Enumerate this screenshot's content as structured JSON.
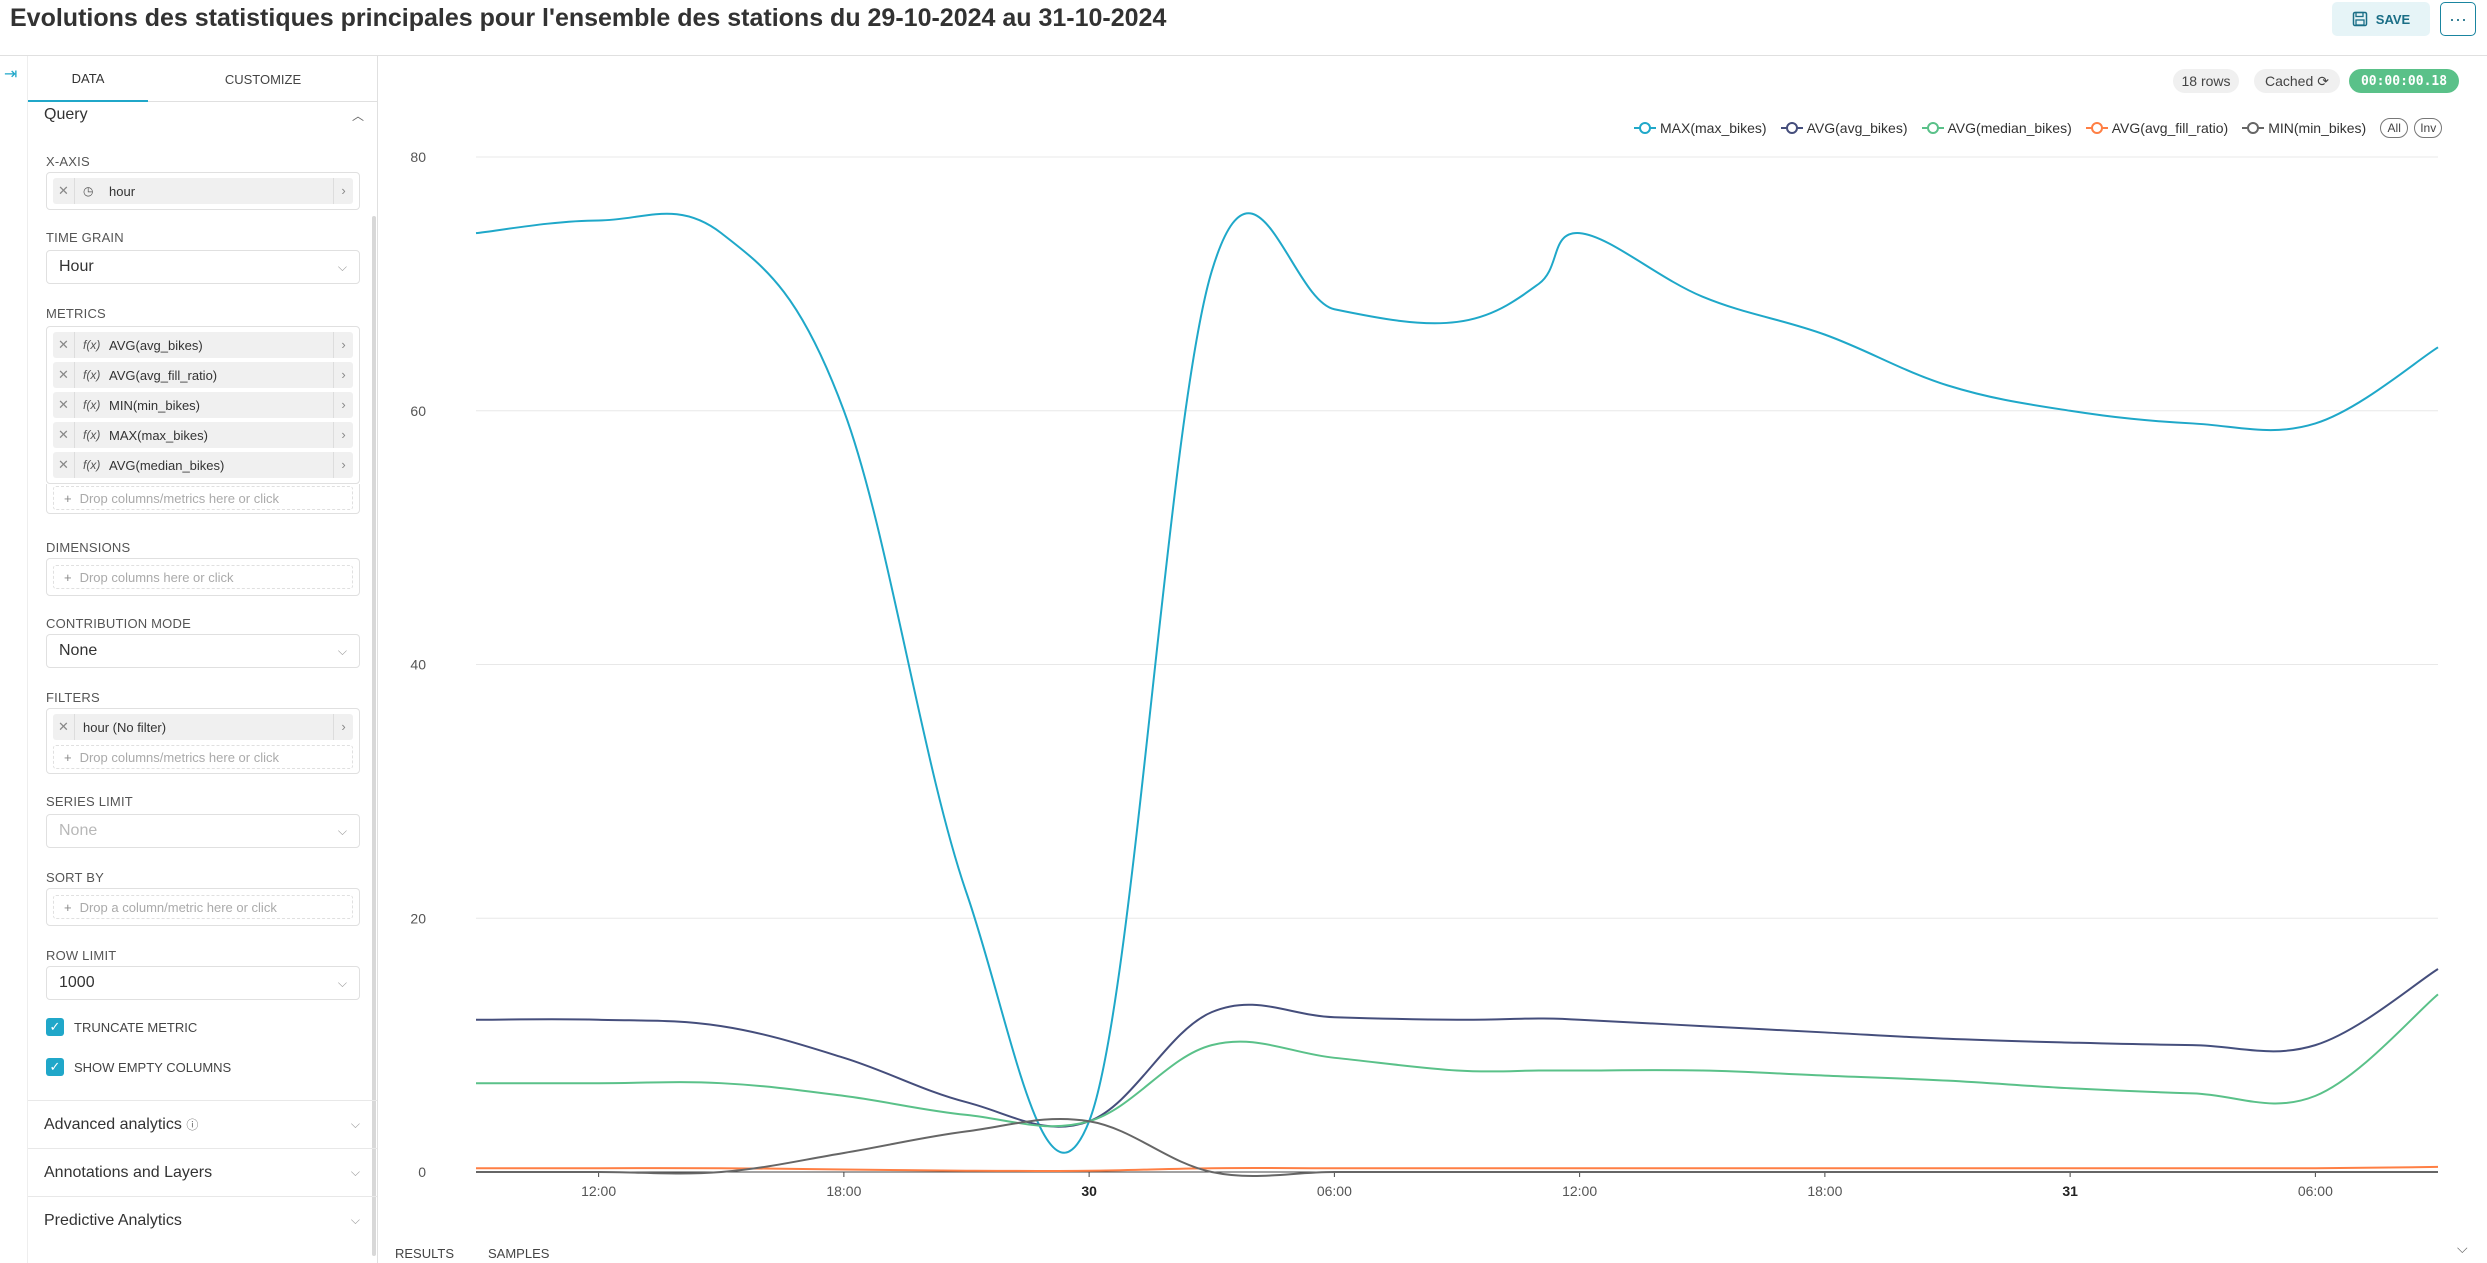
{
  "header": {
    "title": "Evolutions des statistiques principales pour l'ensemble des stations du 29-10-2024 au 31-10-2024",
    "save_label": "SAVE",
    "more_label": "···"
  },
  "sidebar": {
    "tabs": [
      "DATA",
      "CUSTOMIZE"
    ],
    "query_label": "Query",
    "x_axis": {
      "label": "X-AXIS",
      "value": "hour"
    },
    "time_grain": {
      "label": "TIME GRAIN",
      "value": "Hour"
    },
    "metrics": {
      "label": "METRICS",
      "items": [
        "AVG(avg_bikes)",
        "AVG(avg_fill_ratio)",
        "MIN(min_bikes)",
        "MAX(max_bikes)",
        "AVG(median_bikes)"
      ],
      "fx": "f(x)",
      "drop_placeholder": "Drop columns/metrics here or click"
    },
    "dimensions": {
      "label": "DIMENSIONS",
      "drop_placeholder": "Drop columns here or click"
    },
    "contribution_mode": {
      "label": "CONTRIBUTION MODE",
      "value": "None"
    },
    "filters": {
      "label": "FILTERS",
      "value": "hour (No filter)",
      "drop_placeholder": "Drop columns/metrics here or click"
    },
    "series_limit": {
      "label": "SERIES LIMIT",
      "value": "None"
    },
    "sort_by": {
      "label": "SORT BY",
      "drop_placeholder": "Drop a column/metric here or click"
    },
    "row_limit": {
      "label": "ROW LIMIT",
      "value": "1000"
    },
    "truncate_metric": "TRUNCATE METRIC",
    "show_empty_columns": "SHOW EMPTY COLUMNS",
    "advanced_analytics": "Advanced analytics",
    "annotations_layers": "Annotations and Layers",
    "predictive_analytics": "Predictive Analytics"
  },
  "status": {
    "rows": "18 rows",
    "cached": "Cached",
    "timer": "00:00:00.18"
  },
  "legend": {
    "all_label": "All",
    "inv_label": "Inv"
  },
  "bottom_tabs": [
    "RESULTS",
    "SAMPLES"
  ],
  "colors": {
    "accent": "#20a7c9",
    "max_max_bikes": "#1fa8c9",
    "avg_avg_bikes": "#454e7c",
    "avg_median_bikes": "#5ac189",
    "avg_avg_fill_ratio": "#ff7f44",
    "min_min_bikes": "#666666"
  },
  "chart_data": {
    "type": "line",
    "x": [
      "2024-10-29 09:00",
      "2024-10-29 12:00",
      "2024-10-29 15:00",
      "2024-10-29 18:00",
      "2024-10-29 21:00",
      "2024-10-30 00:00",
      "2024-10-30 03:00",
      "2024-10-30 06:00",
      "2024-10-30 09:00",
      "2024-10-30 11:00",
      "2024-10-30 12:00",
      "2024-10-30 15:00",
      "2024-10-30 18:00",
      "2024-10-30 21:00",
      "2024-10-31 00:00",
      "2024-10-31 03:00",
      "2024-10-31 06:00",
      "2024-10-31 09:00"
    ],
    "x_ticks": [
      "12:00",
      "18:00",
      "30",
      "06:00",
      "12:00",
      "18:00",
      "31",
      "06:00"
    ],
    "x_ticks_bold": [
      false,
      false,
      true,
      false,
      false,
      false,
      true,
      false
    ],
    "y_ticks": [
      "0",
      "20",
      "40",
      "60",
      "80"
    ],
    "ylim": [
      0,
      80
    ],
    "grid": true,
    "legend_position": "top-right",
    "series": [
      {
        "name": "MAX(max_bikes)",
        "color": "#1fa8c9",
        "values": [
          74,
          75,
          74,
          60,
          22,
          4,
          71,
          68,
          67,
          70,
          74,
          69,
          66,
          62,
          60,
          59,
          59,
          65
        ]
      },
      {
        "name": "AVG(avg_bikes)",
        "color": "#454e7c",
        "values": [
          12,
          12,
          11.5,
          9,
          5.5,
          4,
          12.6,
          12.2,
          12,
          12.1,
          12,
          11.5,
          11,
          10.5,
          10.2,
          10,
          10,
          16
        ]
      },
      {
        "name": "AVG(median_bikes)",
        "color": "#5ac189",
        "values": [
          7,
          7,
          7,
          6,
          4.5,
          4,
          10,
          9,
          8,
          8,
          8,
          8,
          7.6,
          7.2,
          6.6,
          6.2,
          6,
          14
        ]
      },
      {
        "name": "AVG(avg_fill_ratio)",
        "color": "#ff7f44",
        "values": [
          0.3,
          0.3,
          0.3,
          0.2,
          0.1,
          0.1,
          0.3,
          0.3,
          0.3,
          0.3,
          0.3,
          0.3,
          0.3,
          0.3,
          0.3,
          0.3,
          0.3,
          0.4
        ]
      },
      {
        "name": "MIN(min_bikes)",
        "color": "#666666",
        "values": [
          0,
          0,
          0,
          1.5,
          3.2,
          4,
          0,
          0,
          0,
          0,
          0,
          0,
          0,
          0,
          0,
          0,
          0,
          0
        ]
      }
    ]
  }
}
